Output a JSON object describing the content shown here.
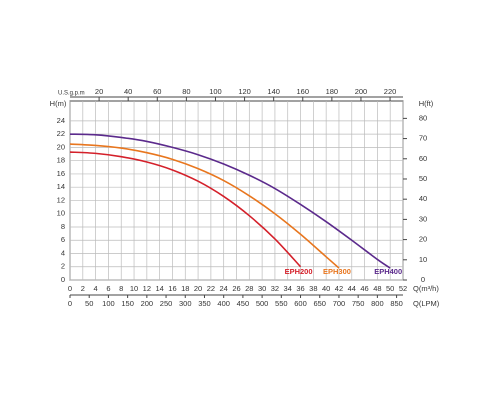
{
  "chart_data": {
    "type": "line",
    "x_label": "Q(m³/h)",
    "x2_label": "Q(LPM)",
    "x3_label": "U.S.g.p.m",
    "y_label": "H(m)",
    "y2_label": "H(ft)",
    "xlim": [
      0,
      52
    ],
    "xticks": [
      0,
      2,
      4,
      6,
      8,
      10,
      12,
      14,
      16,
      18,
      20,
      22,
      24,
      26,
      28,
      30,
      32,
      34,
      36,
      38,
      40,
      42,
      44,
      46,
      48,
      50,
      52
    ],
    "x2lim": [
      0,
      866.7
    ],
    "x2ticks": [
      0,
      50,
      100,
      150,
      200,
      250,
      300,
      350,
      400,
      450,
      500,
      550,
      600,
      650,
      700,
      750,
      800,
      850
    ],
    "x3lim": [
      0,
      228.9
    ],
    "x3ticks": [
      20,
      40,
      60,
      80,
      100,
      120,
      140,
      160,
      180,
      200,
      220
    ],
    "ylim": [
      0,
      27
    ],
    "yticks": [
      0,
      2,
      4,
      6,
      8,
      10,
      12,
      14,
      16,
      18,
      20,
      22,
      24
    ],
    "y2lim": [
      0,
      88.6
    ],
    "y2ticks": [
      0,
      10,
      20,
      30,
      40,
      50,
      60,
      70,
      80
    ],
    "grid": true,
    "series": [
      {
        "name": "EPH200",
        "color": "#d4202a",
        "x": [
          0,
          4,
          8,
          12,
          16,
          20,
          24,
          28,
          32,
          36
        ],
        "values": [
          19.3,
          19.1,
          18.6,
          17.8,
          16.6,
          14.9,
          12.6,
          9.7,
          6.2,
          2.0
        ]
      },
      {
        "name": "EPH300",
        "color": "#e8761e",
        "x": [
          0,
          4,
          8,
          12,
          16,
          20,
          24,
          28,
          32,
          36,
          40,
          42
        ],
        "values": [
          20.5,
          20.3,
          19.9,
          19.2,
          18.2,
          16.8,
          15.0,
          12.7,
          10.0,
          6.9,
          3.5,
          1.8
        ]
      },
      {
        "name": "EPH400",
        "color": "#5b2a8c",
        "x": [
          0,
          4,
          8,
          12,
          16,
          20,
          24,
          28,
          32,
          36,
          40,
          44,
          48,
          50
        ],
        "values": [
          22.0,
          21.9,
          21.5,
          20.9,
          20.0,
          18.9,
          17.5,
          15.8,
          13.8,
          11.4,
          8.8,
          6.0,
          3.1,
          1.8
        ]
      }
    ]
  }
}
